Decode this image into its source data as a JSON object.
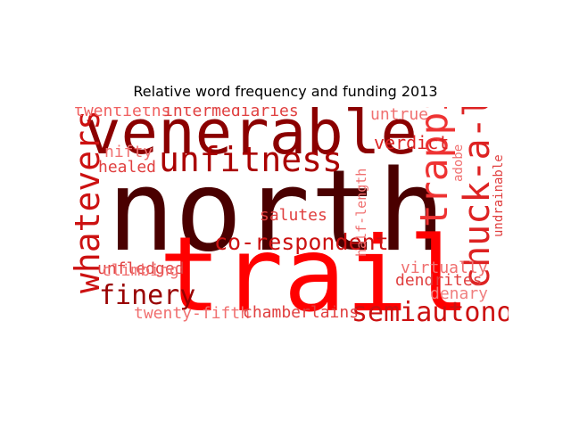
{
  "chart_data": {
    "type": "wordcloud",
    "title": "Relative word frequency and funding 2013",
    "colors": {
      "dark": "#4a0000",
      "mid": "#8b0000",
      "bright": "#ff0000",
      "light": "#f06060"
    },
    "words": [
      {
        "text": "north",
        "weight": 1.0,
        "color": "#4a0000",
        "orientation": "horizontal"
      },
      {
        "text": "trail",
        "weight": 0.92,
        "color": "#ff0000",
        "orientation": "horizontal"
      },
      {
        "text": "venerable",
        "weight": 0.55,
        "color": "#8b0000",
        "orientation": "horizontal"
      },
      {
        "text": "trappings",
        "weight": 0.34,
        "color": "#ee3333",
        "orientation": "vertical"
      },
      {
        "text": "chuck-a-luck",
        "weight": 0.32,
        "color": "#dd2222",
        "orientation": "vertical"
      },
      {
        "text": "whatevers",
        "weight": 0.3,
        "color": "#cc1111",
        "orientation": "vertical"
      },
      {
        "text": "unfitness",
        "weight": 0.3,
        "color": "#aa0000",
        "orientation": "horizontal"
      },
      {
        "text": "semiautonomous",
        "weight": 0.24,
        "color": "#cc1111",
        "orientation": "horizontal"
      },
      {
        "text": "finery",
        "weight": 0.24,
        "color": "#990000",
        "orientation": "horizontal"
      },
      {
        "text": "co-respondent",
        "weight": 0.2,
        "color": "#cc1111",
        "orientation": "horizontal"
      },
      {
        "text": "verdict",
        "weight": 0.16,
        "color": "#dd2222",
        "orientation": "horizontal"
      },
      {
        "text": "twentieths",
        "weight": 0.14,
        "color": "#f06060",
        "orientation": "horizontal"
      },
      {
        "text": "intermediaries",
        "weight": 0.14,
        "color": "#e04040",
        "orientation": "horizontal"
      },
      {
        "text": "untrue",
        "weight": 0.14,
        "color": "#f07070",
        "orientation": "horizontal"
      },
      {
        "text": "nifty",
        "weight": 0.14,
        "color": "#f07070",
        "orientation": "horizontal"
      },
      {
        "text": "healed",
        "weight": 0.14,
        "color": "#e04040",
        "orientation": "horizontal"
      },
      {
        "text": "salutes",
        "weight": 0.14,
        "color": "#e04040",
        "orientation": "horizontal"
      },
      {
        "text": "unfledged",
        "weight": 0.14,
        "color": "#e04040",
        "orientation": "horizontal"
      },
      {
        "text": "climbing",
        "weight": 0.14,
        "color": "#f07070",
        "orientation": "horizontal"
      },
      {
        "text": "virtually",
        "weight": 0.14,
        "color": "#f07070",
        "orientation": "horizontal"
      },
      {
        "text": "dendrites",
        "weight": 0.14,
        "color": "#e04040",
        "orientation": "horizontal"
      },
      {
        "text": "denary",
        "weight": 0.14,
        "color": "#f08080",
        "orientation": "horizontal"
      },
      {
        "text": "twenty-fifth",
        "weight": 0.14,
        "color": "#f07070",
        "orientation": "horizontal"
      },
      {
        "text": "chamberlains",
        "weight": 0.14,
        "color": "#e04040",
        "orientation": "horizontal"
      },
      {
        "text": "half-length",
        "weight": 0.12,
        "color": "#f07070",
        "orientation": "vertical"
      },
      {
        "text": "adobe",
        "weight": 0.11,
        "color": "#f07070",
        "orientation": "vertical"
      },
      {
        "text": "undrainable",
        "weight": 0.11,
        "color": "#e04040",
        "orientation": "vertical"
      }
    ]
  }
}
